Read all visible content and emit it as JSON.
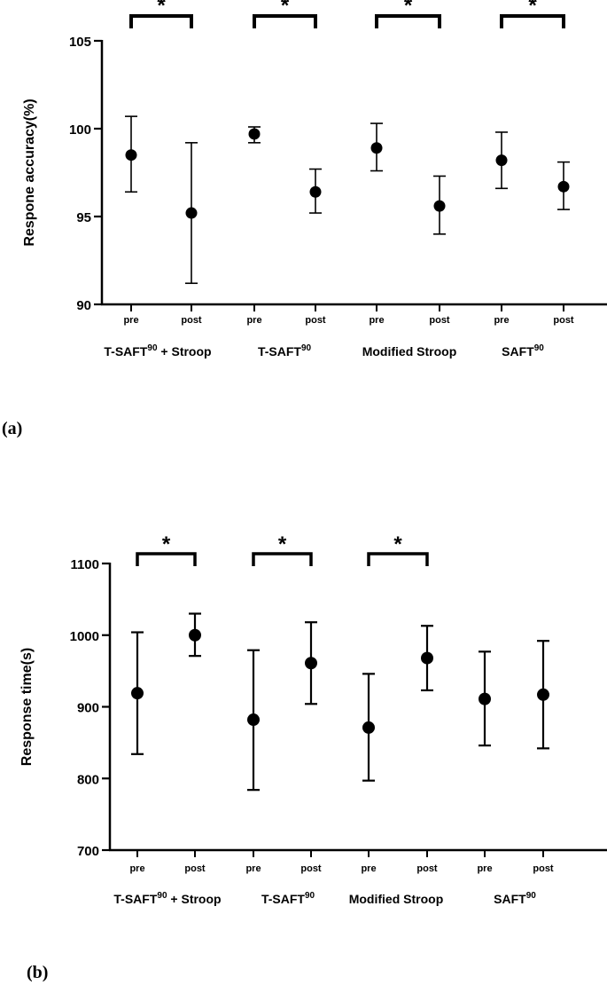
{
  "panels": {
    "a": "(a)",
    "b": "(b)"
  },
  "chart_data": [
    {
      "type": "scatter",
      "id": "a",
      "title": "",
      "ylabel": "Respone accuracy(%)",
      "ylim": [
        90,
        105
      ],
      "yticks": [
        90,
        95,
        100,
        105
      ],
      "x": [
        "pre",
        "post",
        "pre",
        "post",
        "pre",
        "post",
        "pre",
        "post"
      ],
      "groups": [
        "T-SAFT90 + Stroop",
        "T-SAFT90",
        "Modified Stroop",
        "SAFT90"
      ],
      "group_labels": [
        {
          "text": "T-SAFT",
          "sup": "90",
          "tail": " + Stroop"
        },
        {
          "text": "T-SAFT",
          "sup": "90",
          "tail": ""
        },
        {
          "text": "Modified Stroop",
          "sup": "",
          "tail": ""
        },
        {
          "text": "SAFT",
          "sup": "90",
          "tail": ""
        }
      ],
      "series": [
        {
          "values": [
            98.5,
            95.2,
            99.7,
            96.4,
            98.9,
            95.6,
            98.2,
            96.7
          ],
          "lower": [
            96.4,
            91.2,
            99.2,
            95.2,
            97.6,
            94.0,
            96.6,
            95.4
          ],
          "upper": [
            100.7,
            99.2,
            100.1,
            97.7,
            100.3,
            97.3,
            99.8,
            98.1
          ]
        }
      ],
      "significance": [
        {
          "from": 0,
          "to": 1,
          "label": "*"
        },
        {
          "from": 2,
          "to": 3,
          "label": "*"
        },
        {
          "from": 4,
          "to": 5,
          "label": "*"
        },
        {
          "from": 6,
          "to": 7,
          "label": "*"
        }
      ]
    },
    {
      "type": "scatter",
      "id": "b",
      "title": "",
      "ylabel": "Response time(s)",
      "ylim": [
        700,
        1100
      ],
      "yticks": [
        700,
        800,
        900,
        1000,
        1100
      ],
      "x": [
        "pre",
        "post",
        "pre",
        "post",
        "pre",
        "post",
        "pre",
        "post"
      ],
      "groups": [
        "T-SAFT90 + Stroop",
        "T-SAFT90",
        "Modified Stroop",
        "SAFT90"
      ],
      "group_labels": [
        {
          "text": "T-SAFT",
          "sup": "90",
          "tail": " + Stroop"
        },
        {
          "text": "T-SAFT",
          "sup": "90",
          "tail": ""
        },
        {
          "text": "Modified Stroop",
          "sup": "",
          "tail": ""
        },
        {
          "text": "SAFT",
          "sup": "90",
          "tail": ""
        }
      ],
      "series": [
        {
          "values": [
            919,
            1000,
            882,
            961,
            871,
            968,
            911,
            917
          ],
          "lower": [
            834,
            971,
            784,
            904,
            797,
            923,
            846,
            842
          ],
          "upper": [
            1004,
            1030,
            979,
            1018,
            946,
            1013,
            977,
            992
          ]
        }
      ],
      "significance": [
        {
          "from": 0,
          "to": 1,
          "label": "*"
        },
        {
          "from": 2,
          "to": 3,
          "label": "*"
        },
        {
          "from": 4,
          "to": 5,
          "label": "*"
        }
      ]
    }
  ]
}
